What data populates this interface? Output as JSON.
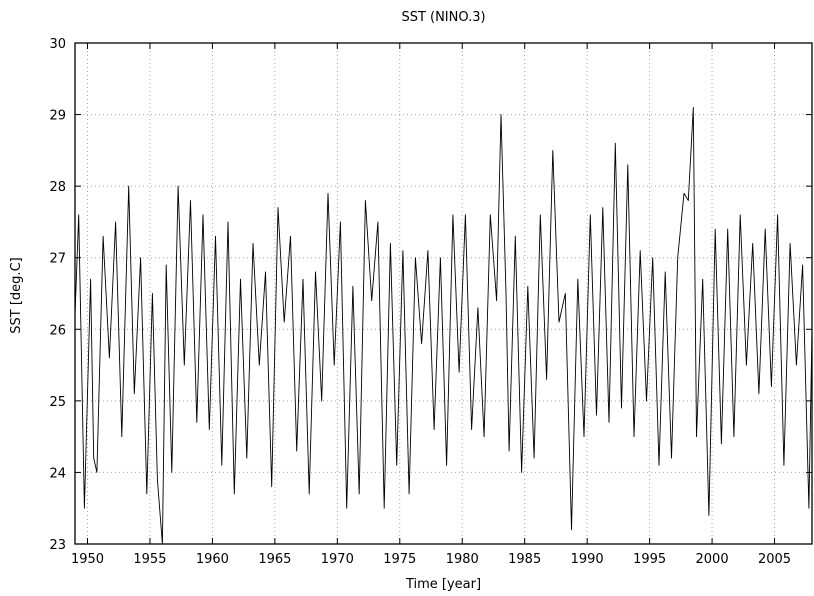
{
  "chart_data": {
    "type": "line",
    "title": "SST (NINO.3)",
    "xlabel": "Time [year]",
    "ylabel": "SST [deg.C]",
    "xlim": [
      1949.0,
      2008.0
    ],
    "ylim": [
      23,
      30
    ],
    "xticks": [
      1950,
      1955,
      1960,
      1965,
      1970,
      1975,
      1980,
      1985,
      1990,
      1995,
      2000,
      2005
    ],
    "yticks": [
      23,
      24,
      25,
      26,
      27,
      28,
      29,
      30
    ],
    "grid": true,
    "legend": "none",
    "line_color": "#000000",
    "series": [
      {
        "x": [
          1949.0,
          1949.3,
          1949.75,
          1950.25,
          1950.5,
          1950.75,
          1951.25,
          1951.75,
          1952.25,
          1952.75,
          1953.3,
          1953.75,
          1954.25,
          1954.75,
          1955.2,
          1955.6,
          1956.0,
          1956.3,
          1956.75,
          1957.25,
          1957.75,
          1958.25,
          1958.75,
          1959.25,
          1959.75,
          1960.25,
          1960.75,
          1961.25,
          1961.75,
          1962.25,
          1962.75,
          1963.25,
          1963.75,
          1964.25,
          1964.75,
          1965.25,
          1965.75,
          1966.25,
          1966.75,
          1967.25,
          1967.75,
          1968.25,
          1968.75,
          1969.25,
          1969.75,
          1970.25,
          1970.75,
          1971.25,
          1971.75,
          1972.25,
          1972.75,
          1973.25,
          1973.75,
          1974.25,
          1974.75,
          1975.25,
          1975.75,
          1976.25,
          1976.75,
          1977.25,
          1977.75,
          1978.25,
          1978.75,
          1979.25,
          1979.75,
          1980.25,
          1980.75,
          1981.25,
          1981.75,
          1982.25,
          1982.75,
          1983.1,
          1983.5,
          1983.75,
          1984.25,
          1984.75,
          1985.25,
          1985.75,
          1986.25,
          1986.75,
          1987.25,
          1987.75,
          1988.25,
          1988.75,
          1989.25,
          1989.75,
          1990.25,
          1990.75,
          1991.25,
          1991.75,
          1992.25,
          1992.75,
          1993.25,
          1993.75,
          1994.25,
          1994.75,
          1995.25,
          1995.75,
          1996.25,
          1996.75,
          1997.25,
          1997.75,
          1998.1,
          1998.5,
          1998.75,
          1999.25,
          1999.75,
          2000.25,
          2000.75,
          2001.25,
          2001.75,
          2002.25,
          2002.75,
          2003.25,
          2003.75,
          2004.25,
          2004.75,
          2005.25,
          2005.75,
          2006.25,
          2006.75,
          2007.25,
          2007.75,
          2008.0
        ],
        "y": [
          26.2,
          27.6,
          23.5,
          26.7,
          24.2,
          24.0,
          27.3,
          25.6,
          27.5,
          24.5,
          28.0,
          25.1,
          27.0,
          23.7,
          26.5,
          23.9,
          23.0,
          26.9,
          24.0,
          28.0,
          25.5,
          27.8,
          24.7,
          27.6,
          24.6,
          27.3,
          24.1,
          27.5,
          23.7,
          26.7,
          24.2,
          27.2,
          25.5,
          26.8,
          23.8,
          27.7,
          26.1,
          27.3,
          24.3,
          26.7,
          23.7,
          26.8,
          25.0,
          27.9,
          25.5,
          27.5,
          23.5,
          26.6,
          23.7,
          27.8,
          26.4,
          27.5,
          23.5,
          27.2,
          24.1,
          27.1,
          23.7,
          27.0,
          25.8,
          27.1,
          24.6,
          27.0,
          24.1,
          27.6,
          25.4,
          27.6,
          24.6,
          26.3,
          24.5,
          27.6,
          26.4,
          29.0,
          26.5,
          24.3,
          27.3,
          24.0,
          26.6,
          24.2,
          27.6,
          25.3,
          28.5,
          26.1,
          26.5,
          23.2,
          26.7,
          24.5,
          27.6,
          24.8,
          27.7,
          24.7,
          28.6,
          24.9,
          28.3,
          24.5,
          27.1,
          25.0,
          27.0,
          24.1,
          26.8,
          24.2,
          27.0,
          27.9,
          27.8,
          29.1,
          24.5,
          26.7,
          23.4,
          27.4,
          24.4,
          27.4,
          24.5,
          27.6,
          25.5,
          27.2,
          25.1,
          27.4,
          25.2,
          27.6,
          24.1,
          27.2,
          25.5,
          26.9,
          23.5,
          26.0
        ]
      }
    ]
  }
}
